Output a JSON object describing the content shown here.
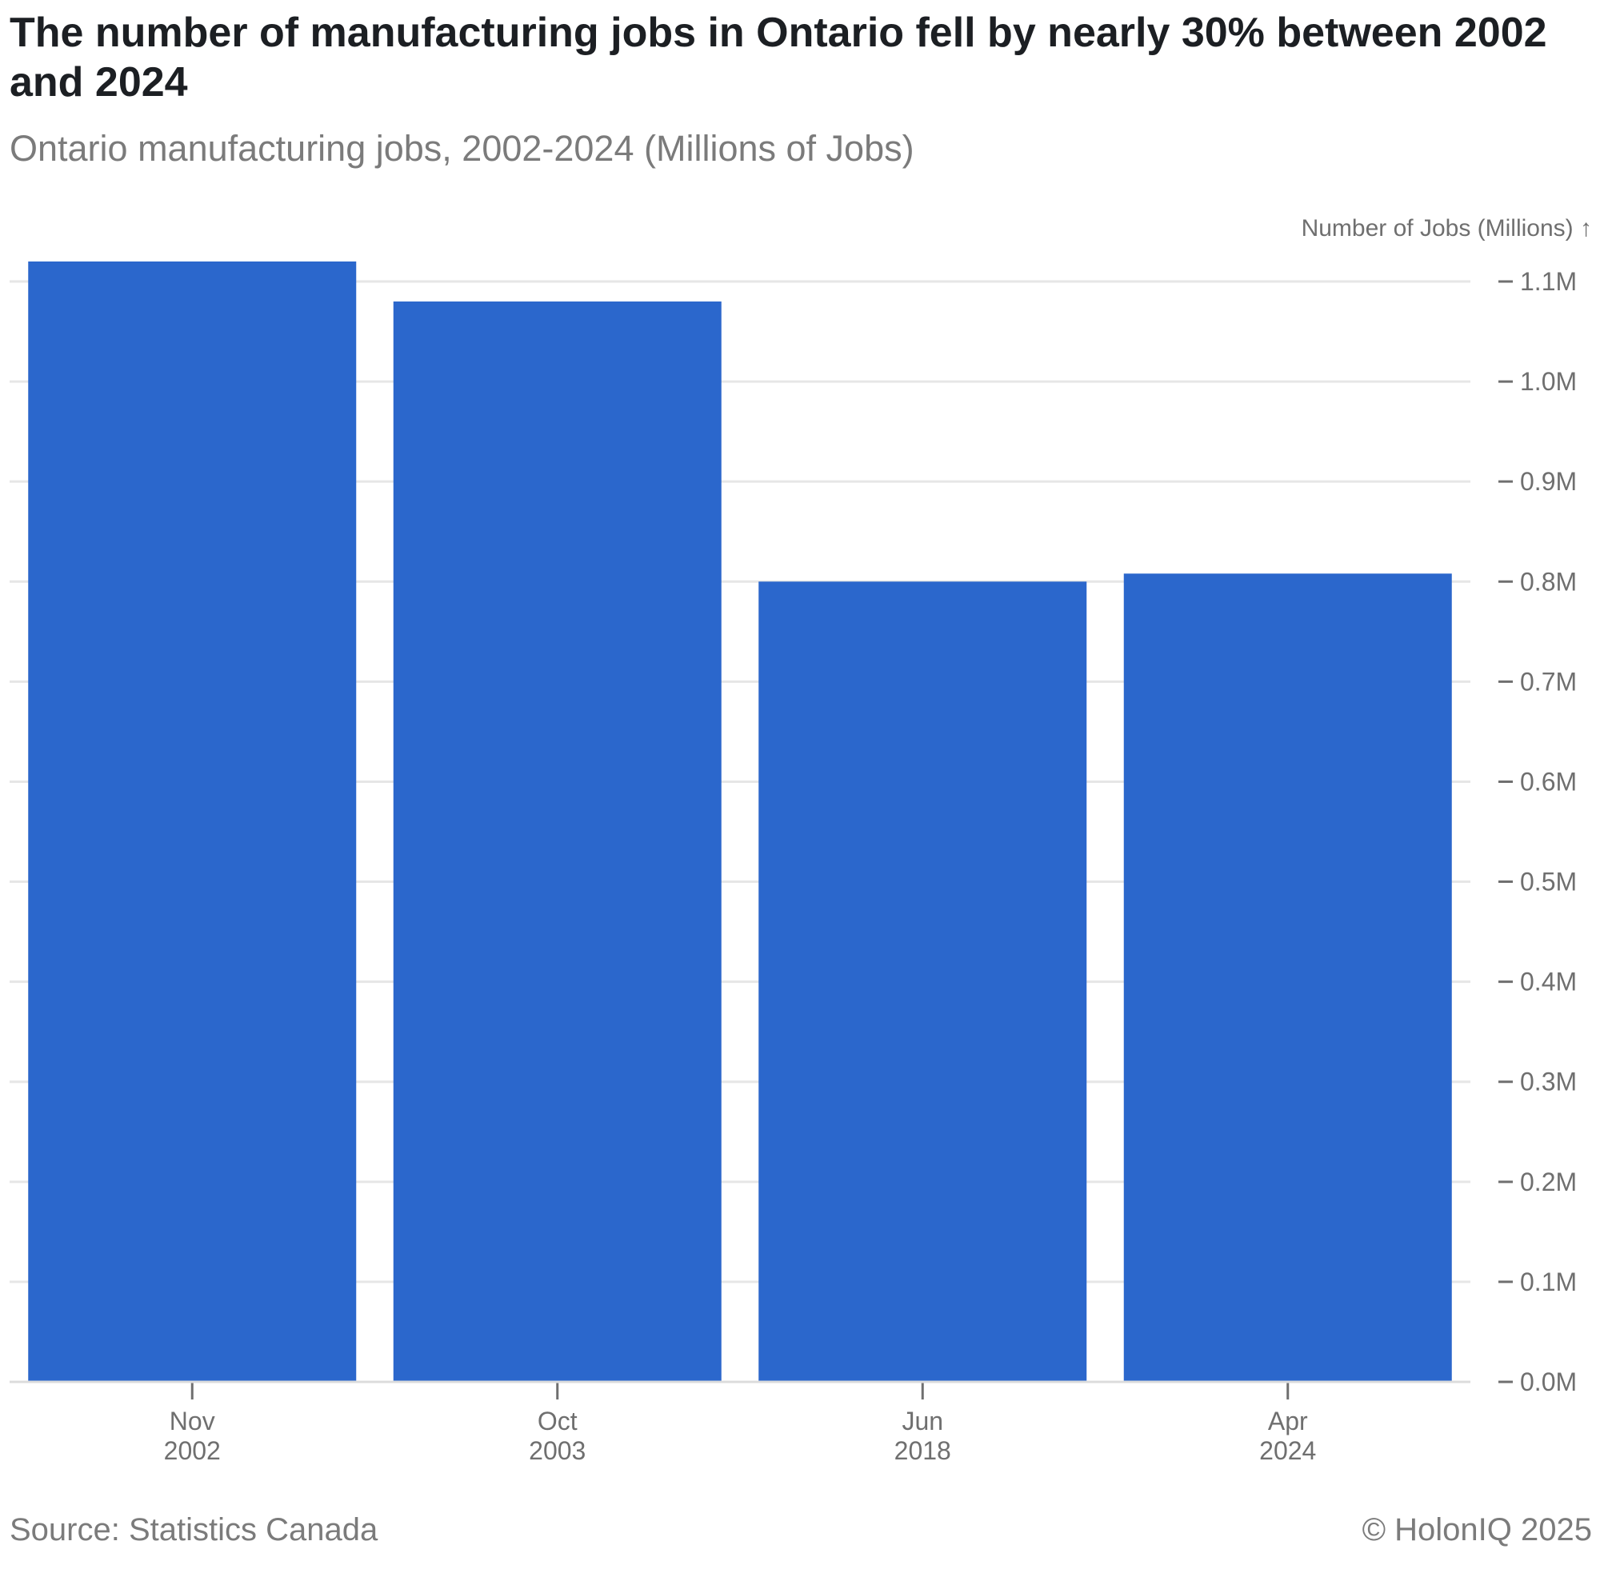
{
  "header": {
    "title": "The number of manufacturing jobs in Ontario fell by nearly 30% between 2002 and 2024",
    "subtitle": "Ontario manufacturing jobs, 2002-2024 (Millions of Jobs)"
  },
  "footer": {
    "source": "Source: Statistics Canada",
    "copyright": "© HolonIQ 2025"
  },
  "colors": {
    "bar": "#2b67cc",
    "grid": "#e6e6e6",
    "text_muted": "#7b7b7b"
  },
  "chart_data": {
    "type": "bar",
    "title": "The number of manufacturing jobs in Ontario fell by nearly 30% between 2002 and 2024",
    "subtitle": "Ontario manufacturing jobs, 2002-2024 (Millions of Jobs)",
    "categories": [
      [
        "Nov",
        "2002"
      ],
      [
        "Oct",
        "2003"
      ],
      [
        "Jun",
        "2018"
      ],
      [
        "Apr",
        "2024"
      ]
    ],
    "values": [
      1.12,
      1.08,
      0.8,
      0.808
    ],
    "ylabel": "Number of Jobs (Millions) ↑",
    "ylim": [
      0,
      1.1
    ],
    "yticks": [
      0.0,
      0.1,
      0.2,
      0.3,
      0.4,
      0.5,
      0.6,
      0.7,
      0.8,
      0.9,
      1.0,
      1.1
    ],
    "ytick_labels": [
      "0.0M",
      "0.1M",
      "0.2M",
      "0.3M",
      "0.4M",
      "0.5M",
      "0.6M",
      "0.7M",
      "0.8M",
      "0.9M",
      "1.0M",
      "1.1M"
    ],
    "y_axis_position": "right",
    "grid": true,
    "legend": "none"
  }
}
